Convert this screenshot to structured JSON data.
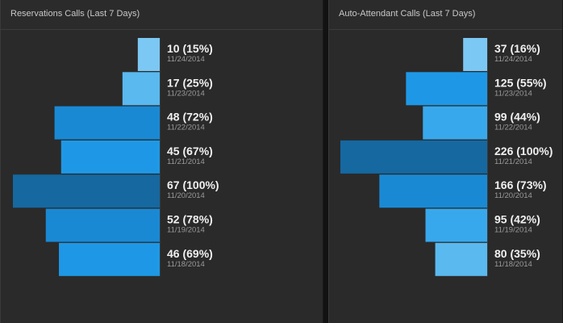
{
  "colors": {
    "background": "#121212",
    "panel": "#2a2a2a",
    "shades": [
      "#7cc8f4",
      "#5ab9ef",
      "#38a8ec",
      "#1e98e6",
      "#1a89d4",
      "#1568a0"
    ]
  },
  "chart_data": [
    {
      "type": "bar",
      "orientation": "horizontal",
      "title": "Reservations Calls (Last 7 Days)",
      "categories": [
        "11/24/2014",
        "11/23/2014",
        "11/22/2014",
        "11/21/2014",
        "11/20/2014",
        "11/19/2014",
        "11/18/2014"
      ],
      "values": [
        10,
        17,
        48,
        45,
        67,
        52,
        46
      ],
      "value_labels": [
        "10 (15%)",
        "17 (25%)",
        "48 (72%)",
        "45 (67%)",
        "67 (100%)",
        "52 (78%)",
        "46 (69%)"
      ],
      "xlim": [
        0,
        67
      ]
    },
    {
      "type": "bar",
      "orientation": "horizontal",
      "title": "Auto-Attendant Calls (Last 7 Days)",
      "categories": [
        "11/24/2014",
        "11/23/2014",
        "11/22/2014",
        "11/21/2014",
        "11/20/2014",
        "11/19/2014",
        "11/18/2014"
      ],
      "values": [
        37,
        125,
        99,
        226,
        166,
        95,
        80
      ],
      "value_labels": [
        "37 (16%)",
        "125 (55%)",
        "99 (44%)",
        "226 (100%)",
        "166 (73%)",
        "95 (42%)",
        "80 (35%)"
      ],
      "xlim": [
        0,
        226
      ]
    }
  ]
}
